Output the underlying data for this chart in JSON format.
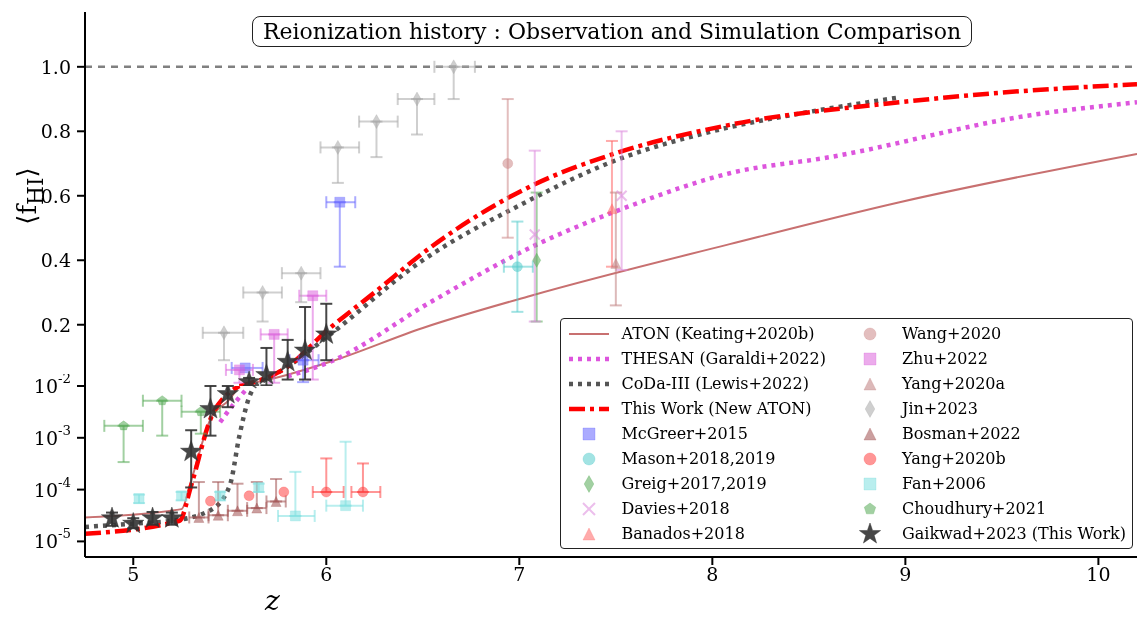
{
  "chart_data": [
    {
      "type": "line",
      "title": "Reionization history : Observation and Simulation Comparison",
      "ylabel": "⟨f$_{HI}$⟩",
      "xlim": [
        4.75,
        10.2
      ],
      "xticks": [
        5,
        6,
        7,
        8,
        9,
        10
      ],
      "ylim": [
        0.01,
        1.17
      ],
      "yticks": [
        0.2,
        0.4,
        0.6,
        0.8,
        {
          "value": 1,
          "label": "1.0"
        }
      ],
      "tick_labels": "y",
      "legend": "bottom right",
      "ref_lines": [
        {
          "axis": "y",
          "value": 1,
          "color": "#808080",
          "line_style": "dotted"
        }
      ],
      "series": [
        {
          "name": "ATON (Keating+2020b)",
          "line_style": "solid",
          "color": "#c87070",
          "x": [
            5.55,
            5.8,
            6.02,
            6.5,
            7.06,
            8.09,
            8.97,
            10.2
          ],
          "values": [
            0.01,
            0.045,
            0.085,
            0.19,
            0.29,
            0.45,
            0.58,
            0.73
          ]
        },
        {
          "name": "THESAN (Garaldi+2022)",
          "line_style": "dotted",
          "color": "#dd55dd",
          "x": [
            5.8,
            6.02,
            6.54,
            7.06,
            7.58,
            8.09,
            8.61,
            9.65,
            10.2
          ],
          "values": [
            0.04,
            0.085,
            0.27,
            0.44,
            0.57,
            0.67,
            0.72,
            0.85,
            0.89
          ]
        },
        {
          "name": "CoDa-III (Lewis+2022)",
          "line_style": "dotted",
          "color": "#555555",
          "x": [
            5.63,
            5.8,
            6.0,
            6.5,
            7.0,
            7.5,
            8.0,
            8.5,
            8.97
          ],
          "values": [
            0.012,
            0.07,
            0.16,
            0.4,
            0.57,
            0.71,
            0.8,
            0.86,
            0.905
          ]
        },
        {
          "name": "This Work (New ATON)",
          "line_style": "dashed",
          "color": "#ff0000",
          "x": [
            5.55,
            5.8,
            6.0,
            6.25,
            6.54,
            7.06,
            7.49,
            8.09,
            8.97,
            9.5,
            10.2
          ],
          "values": [
            0.01,
            0.07,
            0.18,
            0.3,
            0.44,
            0.63,
            0.73,
            0.82,
            0.89,
            0.92,
            0.946
          ]
        },
        {
          "name": "McGreer+2015",
          "type": "scatter",
          "marker": "square",
          "color": "#6666ff",
          "x": [
            5.58,
            5.88,
            6.07
          ],
          "values": [
            0.066,
            0.09,
            0.58
          ],
          "errors": [
            null,
            [
              0.022,
              0.09
            ],
            [
              0.38,
              0.58
            ]
          ],
          "xerrors": [
            [
              5.51,
              5.67
            ],
            [
              5.81,
              5.96
            ],
            [
              6.0,
              6.15
            ]
          ]
        },
        {
          "name": "Mason+2018,2019",
          "type": "scatter",
          "marker": "circle",
          "color": "#55cccc",
          "x": [
            6.99
          ],
          "values": [
            0.38
          ],
          "errors": [
            [
              0.24,
              0.52
            ]
          ],
          "xerrors": [
            [
              6.92,
              7.07
            ]
          ]
        },
        {
          "name": "Greig+2017,2019",
          "type": "scatter",
          "marker": "diamond",
          "color": "#55aa55",
          "x": [
            7.09
          ],
          "values": [
            0.4
          ],
          "errors": [
            [
              0.21,
              0.61
            ]
          ]
        },
        {
          "name": "Davies+2018",
          "type": "scatter",
          "marker": "cross",
          "color": "#dd88dd",
          "x": [
            7.08,
            7.53
          ],
          "values": [
            0.48,
            0.6
          ],
          "errors": [
            [
              0.21,
              0.74
            ],
            [
              0.37,
              0.8
            ]
          ]
        },
        {
          "name": "Banados+2018",
          "type": "scatter",
          "marker": "triangle",
          "color": "#ff6666",
          "x": [
            7.48
          ],
          "values": [
            0.56
          ],
          "errors": [
            [
              0.38,
              0.77
            ]
          ]
        },
        {
          "name": "Wang+2020",
          "type": "scatter",
          "marker": "circle",
          "color": "#cc8888",
          "x": [
            6.94
          ],
          "values": [
            0.7
          ],
          "errors": [
            [
              0.47,
              0.9
            ]
          ]
        },
        {
          "name": "Zhu+2022",
          "type": "scatter",
          "marker": "square",
          "color": "#dd66dd",
          "x": [
            5.55,
            5.73,
            5.93
          ],
          "values": [
            0.06,
            0.17,
            0.29
          ],
          "errors": [
            [
              0.02,
              0.06
            ],
            [
              0.02,
              0.17
            ],
            [
              0.03,
              0.29
            ]
          ],
          "xerrors": [
            [
              5.48,
              5.62
            ],
            [
              5.66,
              5.8
            ],
            [
              5.86,
              6.0
            ]
          ]
        },
        {
          "name": "Yang+2020a",
          "type": "scatter",
          "marker": "triangle",
          "color": "#c08080",
          "x": [
            7.5
          ],
          "values": [
            0.39
          ],
          "errors": [
            [
              0.26,
              0.61
            ]
          ]
        },
        {
          "name": "Jin+2023",
          "type": "scatter",
          "marker": "diamond",
          "color": "#a8a8a8",
          "x": [
            5.47,
            5.67,
            5.87,
            6.06,
            6.26,
            6.47,
            6.66
          ],
          "values": [
            0.175,
            0.3,
            0.36,
            0.75,
            0.83,
            0.9,
            1.0
          ],
          "errors": [
            [
              0.09,
              0.175
            ],
            [
              0.21,
              0.3
            ],
            [
              0.27,
              0.36
            ],
            [
              0.64,
              0.75
            ],
            [
              0.72,
              0.83
            ],
            [
              0.79,
              0.9
            ],
            [
              0.9,
              1.0
            ]
          ],
          "xerrors": [
            [
              5.36,
              5.57
            ],
            [
              5.57,
              5.77
            ],
            [
              5.77,
              5.97
            ],
            [
              5.97,
              6.17
            ],
            [
              6.17,
              6.37
            ],
            [
              6.37,
              6.56
            ],
            [
              6.56,
              6.77
            ]
          ]
        },
        {
          "type": "scatter",
          "marker": "star",
          "color": "#333333",
          "x": [
            5.6,
            5.69,
            5.8,
            5.89,
            6.0
          ],
          "values": [
            0.022,
            0.044,
            0.085,
            0.12,
            0.17
          ],
          "errors": [
            [
              0.01,
              0.035
            ],
            [
              0.012,
              0.128
            ],
            [
              0.03,
              0.153
            ],
            [
              0.03,
              0.255
            ],
            [
              0.09,
              0.265
            ]
          ]
        }
      ]
    },
    {
      "type": "line",
      "xlabel": "z",
      "legend": "bottom right",
      "xlim": [
        4.75,
        10.2
      ],
      "xticks": [
        5,
        6,
        7,
        8,
        9,
        10
      ],
      "ylim": [
        5e-06,
        0.01
      ],
      "log": "y",
      "yticks": [
        {
          "value": 1e-05,
          "label": "10$^{-5}$"
        },
        {
          "value": 0.0001,
          "label": "10$^{-4}$"
        },
        {
          "value": 0.001,
          "label": "10$^{-3}$"
        },
        {
          "value": 0.01,
          "label": "10$^{-2}$"
        }
      ],
      "series": [
        {
          "line_style": "solid",
          "color": "#c87070",
          "x": [
            4.75,
            5.25,
            5.3,
            5.4,
            5.5,
            5.55
          ],
          "values": [
            2.9e-05,
            4.2e-05,
            0.00015,
            0.0023,
            0.0056,
            0.01
          ]
        },
        {
          "line_style": "dotted",
          "color": "#dd55dd",
          "x": [
            5.45,
            5.49,
            5.59
          ],
          "values": [
            0.002,
            0.0032,
            0.009
          ]
        },
        {
          "line_style": "dotted",
          "color": "#555555",
          "x": [
            4.75,
            5.0,
            5.2,
            5.4,
            5.5,
            5.55,
            5.6,
            5.63
          ],
          "values": [
            1.9e-05,
            2.2e-05,
            2.5e-05,
            4e-05,
            0.00012,
            0.0011,
            0.006,
            0.01
          ]
        },
        {
          "line_style": "dashed",
          "color": "#ff0000",
          "x": [
            4.75,
            5.24,
            5.3,
            5.4,
            5.5,
            5.55
          ],
          "values": [
            1.4e-05,
            2.5e-05,
            0.00012,
            0.0023,
            0.0076,
            0.01
          ]
        },
        {
          "name": "Bosman+2022",
          "type": "scatter",
          "marker": "triangle",
          "color": "#a05050",
          "x": [
            5.34,
            5.44,
            5.54,
            5.64,
            5.74
          ],
          "values": [
            2.9e-05,
            3.2e-05,
            3.9e-05,
            4.4e-05,
            5.9e-05
          ],
          "errors": [
            [
              2.9e-05,
              0.00014
            ],
            [
              3.2e-05,
              0.00014
            ],
            [
              3.9e-05,
              0.00013
            ],
            [
              4.4e-05,
              0.00014
            ],
            [
              5.9e-05,
              0.00016
            ]
          ],
          "xerrors": [
            [
              5.29,
              5.39
            ],
            [
              5.39,
              5.49
            ],
            [
              5.49,
              5.59
            ],
            [
              5.59,
              5.69
            ],
            [
              5.69,
              5.79
            ]
          ]
        },
        {
          "name": "Yang+2020b",
          "type": "scatter",
          "marker": "circle",
          "color": "#ff4040",
          "x": [
            5.4,
            5.6,
            5.78,
            6.0,
            6.19
          ],
          "values": [
            6e-05,
            7.6e-05,
            9e-05,
            9e-05,
            9e-05
          ],
          "errors": [
            null,
            null,
            null,
            [
              9e-05,
              0.0004
            ],
            [
              9e-05,
              0.00032
            ]
          ],
          "xerrors": [
            null,
            null,
            null,
            [
              5.93,
              6.09
            ],
            [
              6.13,
              6.28
            ]
          ]
        },
        {
          "name": "Fan+2006",
          "type": "scatter",
          "marker": "square",
          "color": "#80e0e0",
          "x": [
            5.03,
            5.25,
            5.45,
            5.65,
            5.84,
            6.1
          ],
          "values": [
            6.7e-05,
            7.6e-05,
            7.6e-05,
            0.00011,
            3.1e-05,
            4.9e-05
          ],
          "errors": [
            [
              5.5e-05,
              8e-05
            ],
            [
              6.2e-05,
              9e-05
            ],
            [
              6.2e-05,
              9e-05
            ],
            [
              9e-05,
              0.00013
            ],
            [
              3.1e-05,
              0.00022
            ],
            [
              4.9e-05,
              0.00084
            ]
          ],
          "xerrors": [
            null,
            null,
            null,
            null,
            [
              5.75,
              5.94
            ],
            [
              6.0,
              6.19
            ]
          ]
        },
        {
          "name": "Choudhury+2021",
          "type": "scatter",
          "color": "#55aa55",
          "x": [
            4.95,
            5.15,
            5.35
          ],
          "values": [
            0.0017,
            0.0052,
            0.0032
          ],
          "errors": [
            [
              0.00034,
              0.0017
            ],
            [
              0.0011,
              0.0052
            ],
            [
              0.0012,
              0.0032
            ]
          ],
          "xerrors": [
            [
              4.85,
              5.05
            ],
            [
              5.05,
              5.25
            ],
            [
              5.25,
              5.45
            ]
          ]
        },
        {
          "name": "Gaikwad+2023 (This Work)",
          "type": "scatter",
          "marker": "star",
          "color": "#333333",
          "x": [
            4.89,
            5.0,
            5.1,
            5.2,
            5.3,
            5.4,
            5.49
          ],
          "values": [
            2.8e-05,
            2.2e-05,
            2.8e-05,
            2.8e-05,
            0.00054,
            0.0036,
            0.007
          ],
          "errors": [
            [
              2e-05,
              3.6e-05
            ],
            [
              1.8e-05,
              2.8e-05
            ],
            [
              2.1e-05,
              3.7e-05
            ],
            [
              2.1e-05,
              3.6e-05
            ],
            [
              0.00011,
              0.0014
            ],
            [
              0.0011,
              0.01
            ],
            [
              0.0039,
              0.01
            ]
          ]
        }
      ]
    }
  ]
}
